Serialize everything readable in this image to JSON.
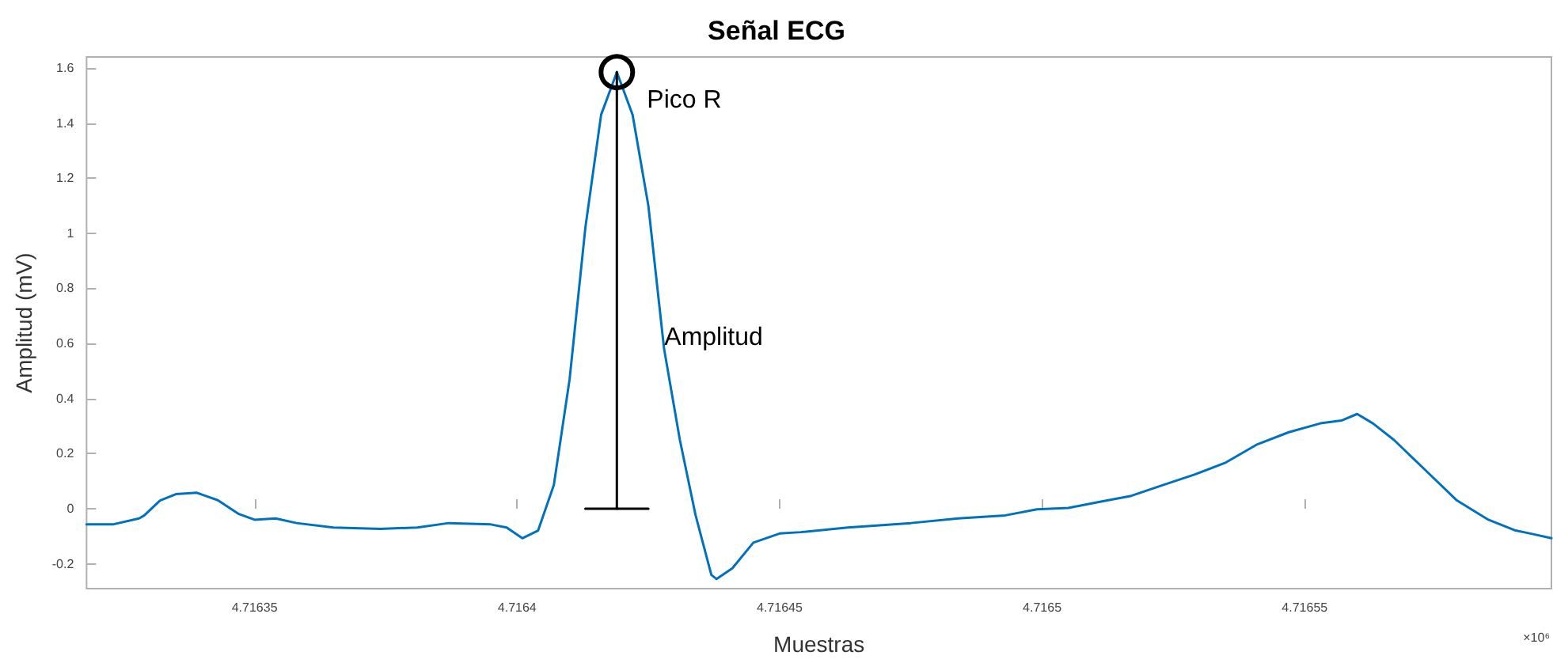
{
  "chart_data": {
    "type": "line",
    "title": "Señal ECG",
    "xlabel": "Muestras",
    "ylabel": "Amplitud (mV)",
    "x": [
      4.716318,
      4.716323,
      4.716328,
      4.716329,
      4.716332,
      4.716335,
      4.716339,
      4.716343,
      4.716347,
      4.71635,
      4.716354,
      4.716358,
      4.716365,
      4.716374,
      4.716381,
      4.716387,
      4.716395,
      4.716398,
      4.716401,
      4.716404,
      4.716407,
      4.71641,
      4.716413,
      4.716416,
      4.716419,
      4.716422,
      4.716425,
      4.716428,
      4.716431,
      4.716434,
      4.716437,
      4.716438,
      4.716441,
      4.716445,
      4.71645,
      4.716454,
      4.716463,
      4.716475,
      4.716484,
      4.716493,
      4.716499,
      4.716505,
      4.716511,
      4.716517,
      4.716523,
      4.716529,
      4.716535,
      4.716541,
      4.716547,
      4.716553,
      4.716557,
      4.71656,
      4.716563,
      4.716567,
      4.716573,
      4.716579,
      4.716585,
      4.71659,
      4.716593,
      4.716597
    ],
    "series": [
      {
        "color": "#0072bd",
        "values": [
          -0.057,
          -0.057,
          -0.035,
          -0.024,
          0.03,
          0.053,
          0.058,
          0.031,
          -0.019,
          -0.04,
          -0.035,
          -0.052,
          -0.068,
          -0.073,
          -0.068,
          -0.052,
          -0.057,
          -0.068,
          -0.107,
          -0.079,
          0.086,
          0.47,
          1.02,
          1.43,
          1.585,
          1.43,
          1.1,
          0.58,
          0.25,
          -0.024,
          -0.24,
          -0.255,
          -0.216,
          -0.123,
          -0.09,
          -0.085,
          -0.068,
          -0.052,
          -0.035,
          -0.024,
          -0.002,
          0.003,
          0.025,
          0.047,
          0.086,
          0.124,
          0.168,
          0.234,
          0.278,
          0.31,
          0.32,
          0.344,
          0.31,
          0.25,
          0.14,
          0.03,
          -0.04,
          -0.078,
          -0.09,
          -0.107
        ]
      },
      {
        "color": "#000000",
        "marker": "circle",
        "x": [
          4.716419,
          4.716419
        ],
        "values": [
          0,
          1.585
        ]
      },
      {
        "color": "#000000",
        "x": [
          4.716413,
          4.716425
        ],
        "values": [
          0,
          0
        ]
      }
    ],
    "xlim": [
      4.716318,
      4.716597
    ],
    "xticks": [
      4.71635,
      4.7164,
      4.71645,
      4.7165,
      4.71655
    ],
    "ylim": [
      -0.29,
      1.64
    ],
    "yticks": [
      -0.2,
      0,
      0.2,
      0.4,
      0.6,
      0.8,
      1,
      1.2,
      1.4,
      1.6
    ],
    "annotations": [
      {
        "text": "Pico R",
        "x": 4.716419,
        "y": 1.585
      },
      "Amplitud",
      "×10⁶"
    ],
    "grid": false,
    "marker": "none",
    "line_style": "solid"
  }
}
